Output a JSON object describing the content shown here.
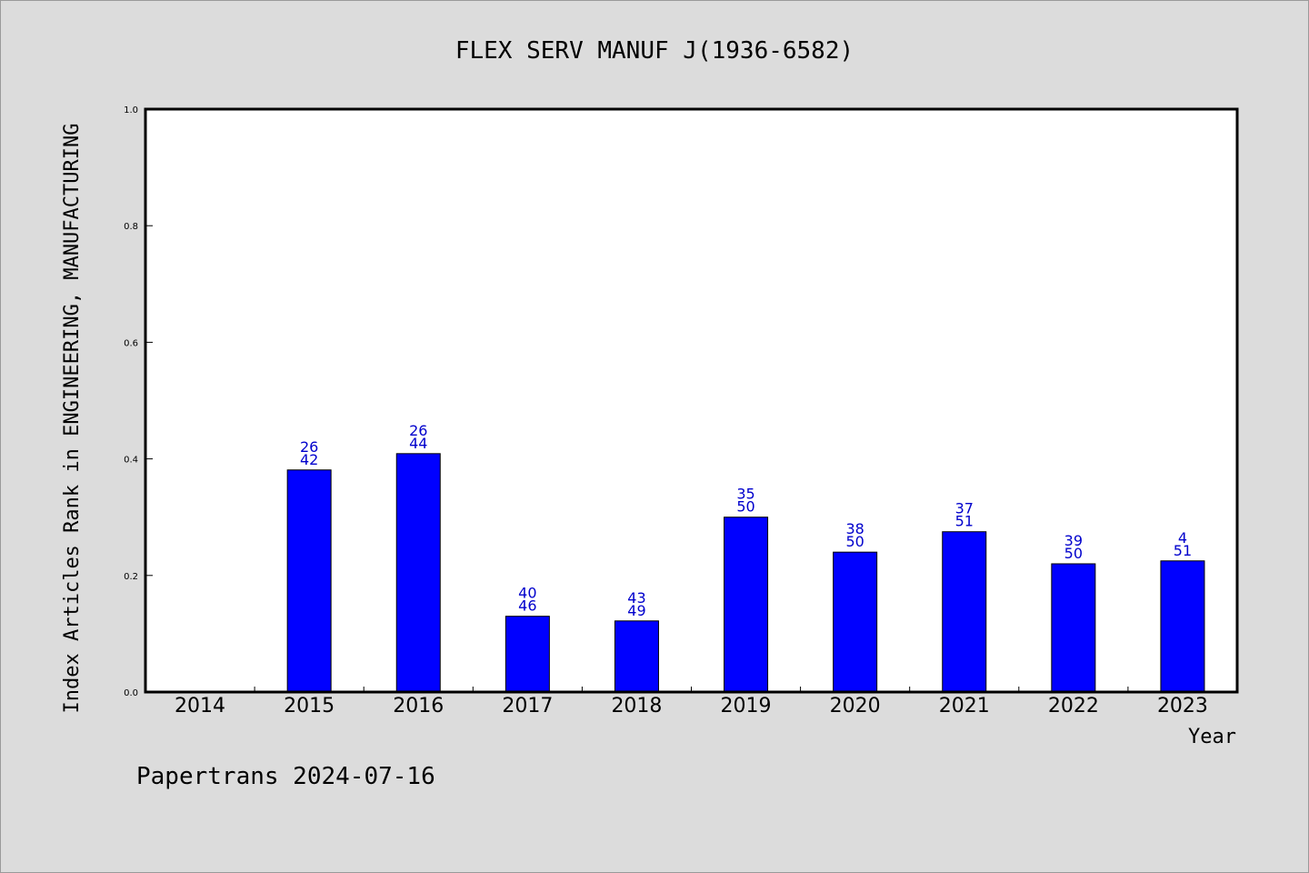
{
  "chart_data": {
    "type": "bar",
    "title": "FLEX SERV MANUF J(1936-6582)",
    "xlabel": "Year",
    "ylabel": "Index Articles Rank in ENGINEERING, MANUFACTURING",
    "ylim": [
      0.0,
      1.0
    ],
    "yticks": [
      "0.0",
      "0.2",
      "0.4",
      "0.6",
      "0.8",
      "1.0"
    ],
    "categories": [
      "2014",
      "2015",
      "2016",
      "2017",
      "2018",
      "2019",
      "2020",
      "2021",
      "2022",
      "2023"
    ],
    "values": [
      null,
      0.381,
      0.409,
      0.13,
      0.122,
      0.3,
      0.24,
      0.275,
      0.22,
      0.225
    ],
    "label_top": [
      "",
      "26",
      "26",
      "40",
      "43",
      "35",
      "38",
      "37",
      "39",
      "4"
    ],
    "label_bottom": [
      "",
      "42",
      "44",
      "46",
      "49",
      "50",
      "50",
      "51",
      "50",
      "51"
    ],
    "grid": false,
    "legend": "none"
  },
  "colors": {
    "bar": "#0000ff",
    "bar_label": "#0000cc",
    "background": "#dcdcdc",
    "plot_area": "#ffffff"
  },
  "footer": "Papertrans 2024-07-16"
}
